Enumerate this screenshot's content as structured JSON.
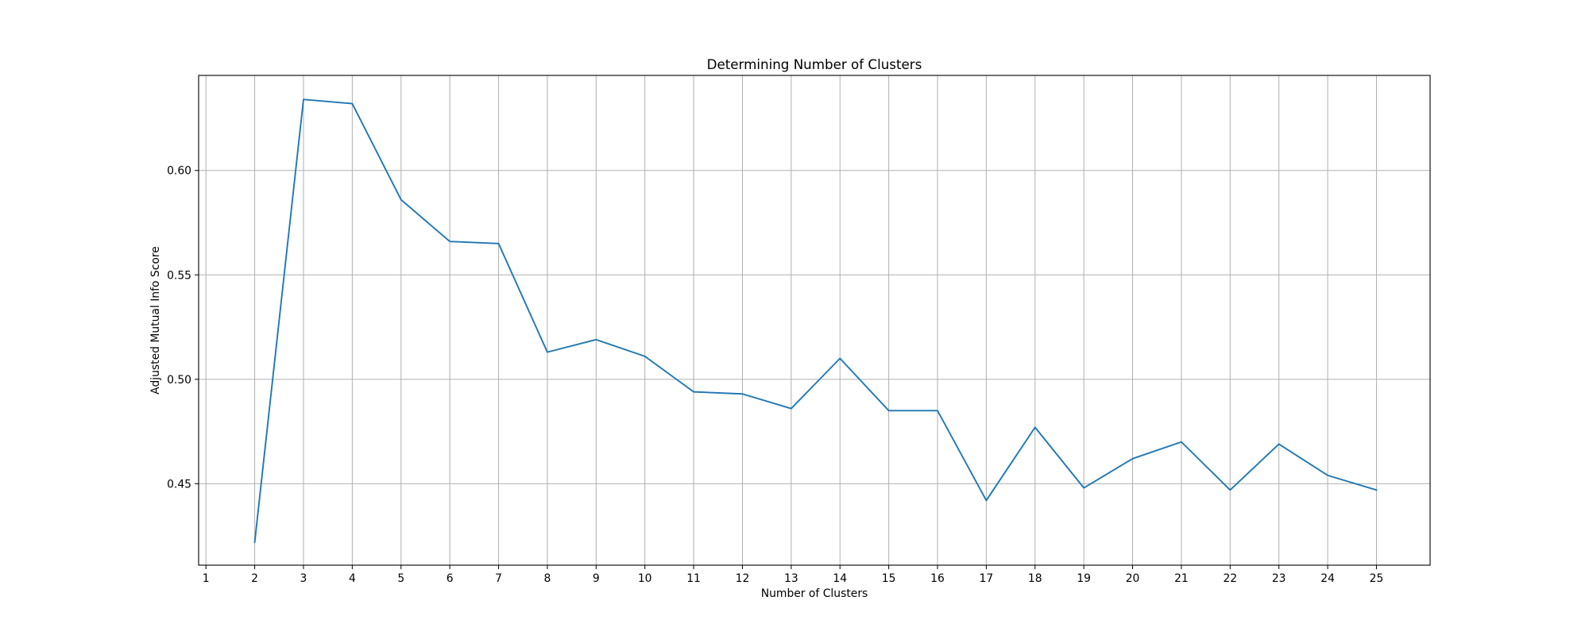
{
  "chart_data": {
    "type": "line",
    "title": "Determining Number of Clusters",
    "xlabel": "Number of Clusters",
    "ylabel": "Adjusted Mutual Info Score",
    "grid": true,
    "legend": "none",
    "series_color": "#1f77b4",
    "x_ticks": [
      1,
      2,
      3,
      4,
      5,
      6,
      7,
      8,
      9,
      10,
      11,
      12,
      13,
      14,
      15,
      16,
      17,
      18,
      19,
      20,
      21,
      22,
      23,
      24,
      25
    ],
    "x_tick_labels": [
      "1",
      "2",
      "3",
      "4",
      "5",
      "6",
      "7",
      "8",
      "9",
      "10",
      "11",
      "12",
      "13",
      "14",
      "15",
      "16",
      "17",
      "18",
      "19",
      "20",
      "21",
      "22",
      "23",
      "24",
      "25"
    ],
    "y_ticks": [
      0.45,
      0.5,
      0.55,
      0.6
    ],
    "y_tick_labels": [
      "0.45",
      "0.50",
      "0.55",
      "0.60"
    ],
    "xlim": [
      0.85,
      26.1
    ],
    "ylim": [
      0.411,
      0.6455
    ],
    "x": [
      2,
      3,
      4,
      5,
      6,
      7,
      8,
      9,
      10,
      11,
      12,
      13,
      14,
      15,
      16,
      17,
      18,
      19,
      20,
      21,
      22,
      23,
      24,
      25
    ],
    "y": [
      0.422,
      0.634,
      0.632,
      0.586,
      0.566,
      0.565,
      0.513,
      0.519,
      0.511,
      0.494,
      0.493,
      0.486,
      0.51,
      0.485,
      0.485,
      0.442,
      0.477,
      0.448,
      0.462,
      0.47,
      0.447,
      0.469,
      0.454,
      0.447
    ]
  }
}
